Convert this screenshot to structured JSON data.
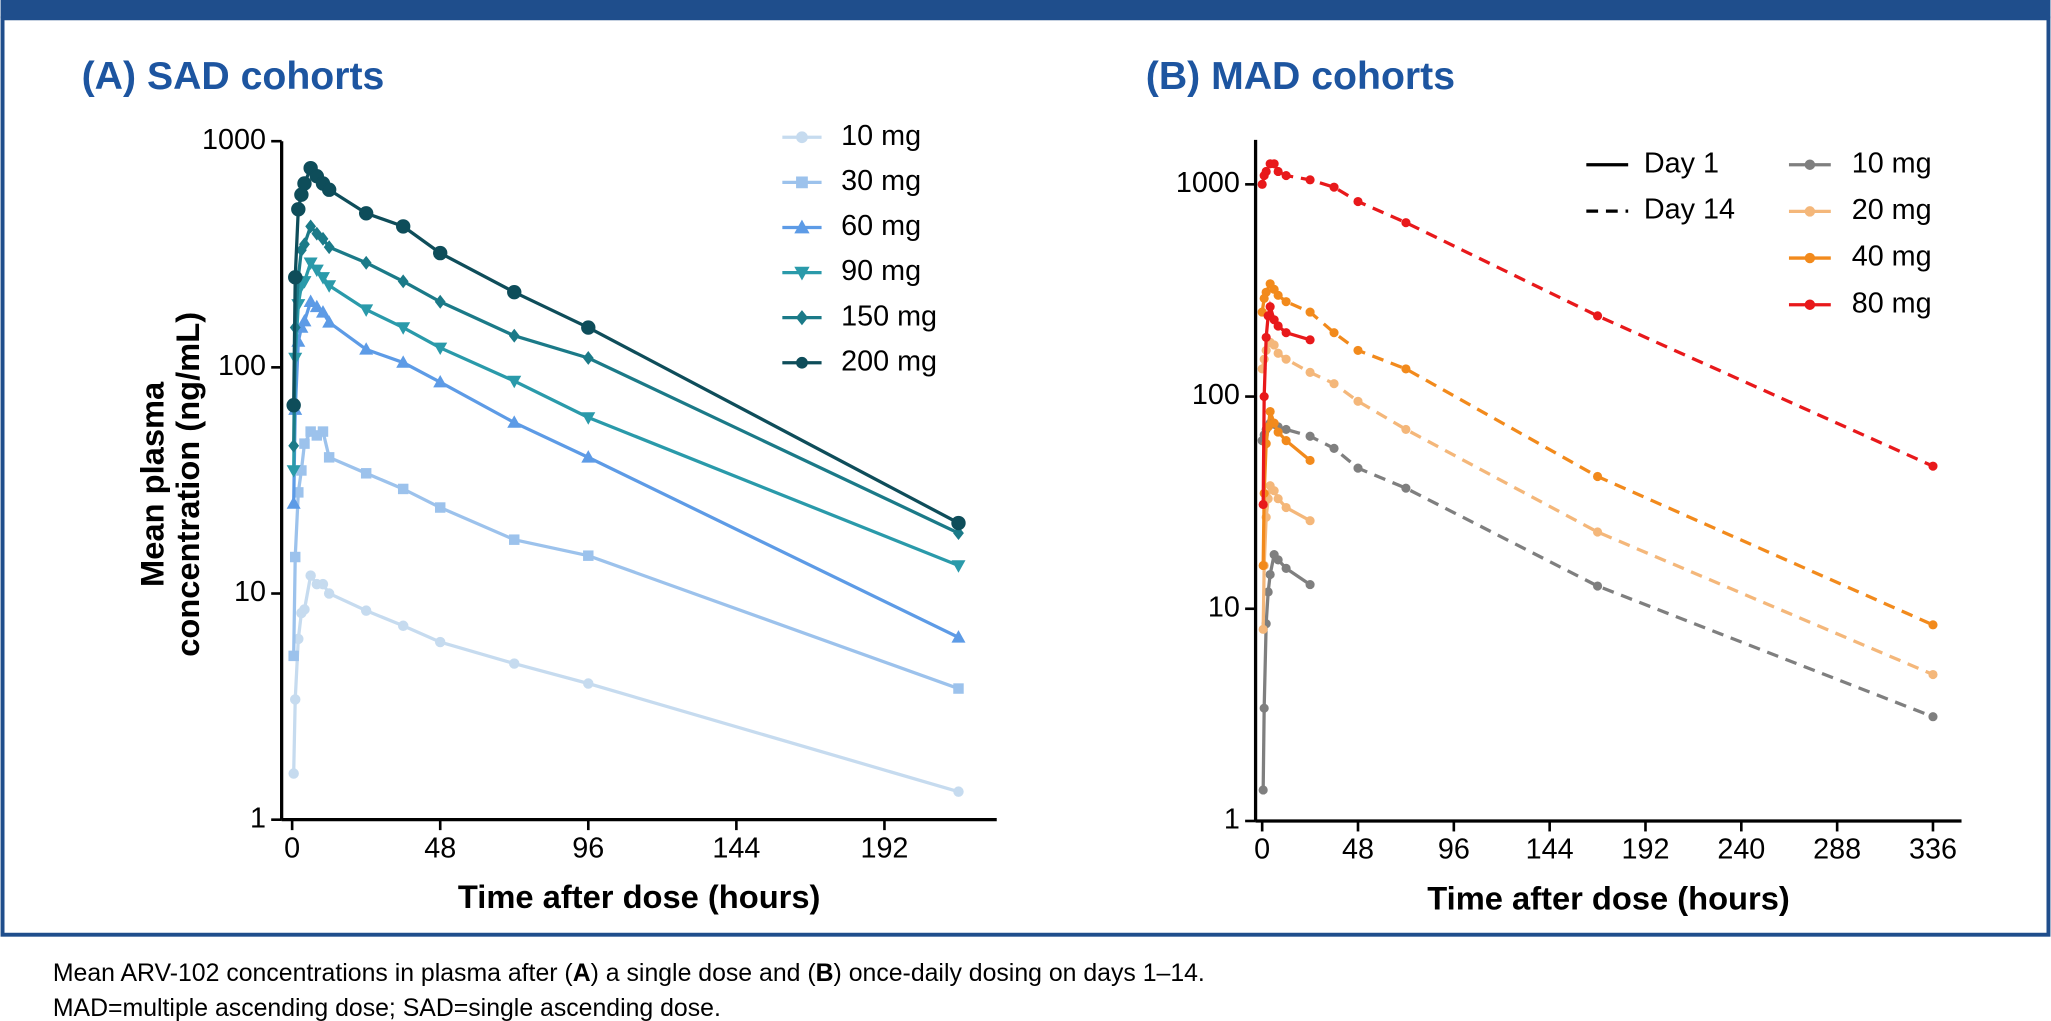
{
  "chart_data": [
    {
      "type": "line",
      "title": "(A) SAD cohorts",
      "x_label": "Time after dose (hours)",
      "y_label": [
        "Mean plasma",
        "concentration (ng/mL)"
      ],
      "x": [
        0.5,
        1,
        2,
        3,
        4,
        6,
        8,
        10,
        12,
        24,
        36,
        48,
        72,
        96,
        216
      ],
      "xlim": [
        -3.4,
        228.4
      ],
      "xticks": [
        0,
        48,
        96,
        144,
        192
      ],
      "ylim": [
        1,
        1000
      ],
      "yticks": [
        1,
        10,
        100,
        1000
      ],
      "y_scale": "log",
      "legend": "top-right",
      "series": [
        {
          "name": "10 mg",
          "color": "#c6dbef",
          "marker": "circle",
          "values": [
            1.6,
            3.4,
            6.3,
            8.2,
            8.5,
            12,
            11,
            11,
            10,
            8.4,
            7.2,
            6.1,
            4.9,
            4.0,
            1.33
          ]
        },
        {
          "name": "30 mg",
          "color": "#9cc2ec",
          "marker": "square",
          "values": [
            5.3,
            14.5,
            28,
            35,
            46,
            52,
            50,
            52,
            40,
            34,
            29,
            24,
            17.3,
            14.7,
            3.8
          ]
        },
        {
          "name": "60 mg",
          "color": "#5d9be6",
          "marker": "triangle",
          "values": [
            25,
            65,
            130,
            150,
            160,
            195,
            185,
            175,
            158,
            120,
            105,
            86,
            57,
            40,
            6.4
          ]
        },
        {
          "name": "90 mg",
          "color": "#2a9aaa",
          "marker": "triangle-down",
          "values": [
            35,
            110,
            190,
            230,
            240,
            290,
            270,
            250,
            230,
            180,
            150,
            122,
            87,
            60,
            13.3
          ]
        },
        {
          "name": "150 mg",
          "color": "#1b7a88",
          "marker": "diamond",
          "values": [
            45,
            150,
            250,
            330,
            350,
            420,
            390,
            370,
            340,
            290,
            240,
            195,
            138,
            110,
            18.5
          ]
        },
        {
          "name": "200 mg",
          "color": "#0e4d5a",
          "marker": "circle",
          "values": [
            68,
            250,
            500,
            580,
            650,
            760,
            700,
            650,
            610,
            480,
            420,
            320,
            215,
            150,
            20.5
          ]
        }
      ]
    },
    {
      "type": "line_days",
      "title": "(B) MAD cohorts",
      "x_label": "Time after dose (hours)",
      "xlim": [
        -3.3,
        350.3
      ],
      "xticks": [
        0,
        48,
        96,
        144,
        192,
        240,
        288,
        336
      ],
      "ylim": [
        1,
        1620
      ],
      "yticks": [
        1,
        10,
        100,
        1000
      ],
      "y_scale": "log",
      "legend": "top-right",
      "line_styles": {
        "day1": {
          "name": "Day 1",
          "dash": "solid",
          "x": [
            0.5,
            1,
            2,
            3,
            4,
            6,
            8,
            12,
            24
          ]
        },
        "day14": {
          "name": "Day 14",
          "dash": "dashed",
          "x": [
            0,
            1,
            2,
            4,
            6,
            8,
            12,
            24,
            36,
            48,
            72,
            168,
            336
          ]
        }
      },
      "series": [
        {
          "name": "10 mg",
          "color": "#7f7f7f",
          "day1": [
            1.4,
            3.4,
            8.5,
            12,
            14.5,
            18,
            17,
            15.5,
            13
          ],
          "day14": [
            62,
            66,
            70,
            75,
            74,
            72,
            70,
            65,
            57,
            46,
            37,
            12.8,
            3.1
          ]
        },
        {
          "name": "20 mg",
          "color": "#f4b77a",
          "day1": [
            8,
            16,
            27,
            33,
            38,
            36,
            33,
            30,
            26
          ],
          "day14": [
            135,
            150,
            165,
            180,
            175,
            160,
            150,
            130,
            115,
            95,
            70,
            23,
            4.9
          ]
        },
        {
          "name": "40 mg",
          "color": "#f28a1c",
          "day1": [
            16,
            35,
            60,
            72,
            85,
            75,
            68,
            62,
            50
          ],
          "day14": [
            250,
            290,
            310,
            340,
            320,
            300,
            280,
            250,
            200,
            165,
            135,
            42,
            8.4
          ]
        },
        {
          "name": "80 mg",
          "color": "#e8191b",
          "day1": [
            31,
            100,
            190,
            240,
            265,
            230,
            215,
            200,
            185
          ],
          "day14": [
            1000,
            1100,
            1150,
            1250,
            1250,
            1150,
            1100,
            1050,
            970,
            830,
            660,
            240,
            47
          ]
        }
      ]
    }
  ],
  "caption": {
    "line1": [
      "Mean ARV-102 concentrations in plasma after (",
      "A",
      ") a single dose and (",
      "B",
      ") once-daily dosing on days 1–14."
    ],
    "line2": "MAD=multiple ascending dose; SAD=single ascending dose."
  }
}
